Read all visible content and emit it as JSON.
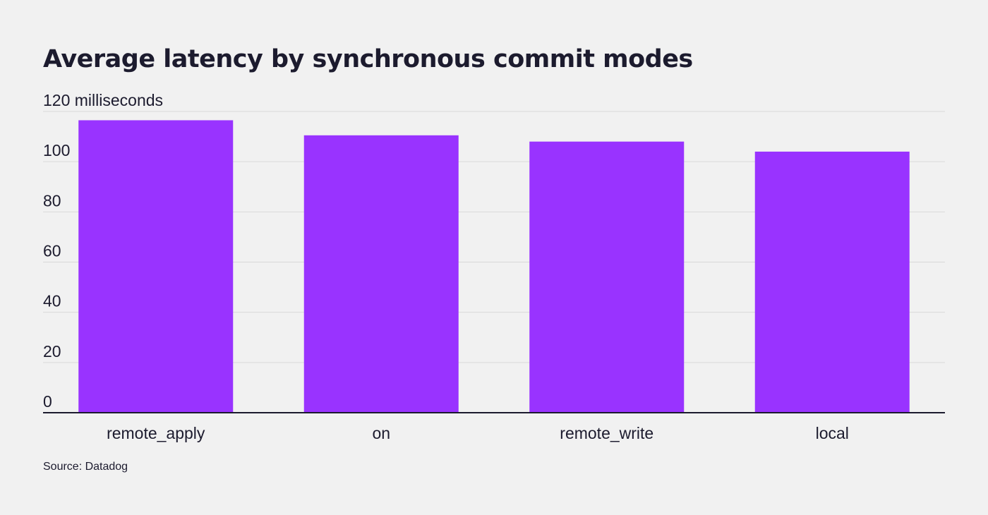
{
  "chart_data": {
    "type": "bar",
    "title": "Average latency by synchronous commit modes",
    "unit_label": "120 milliseconds",
    "categories": [
      "remote_apply",
      "on",
      "remote_write",
      "local"
    ],
    "values": [
      116.5,
      110.5,
      108,
      104
    ],
    "ylim": [
      0,
      120
    ],
    "yticks": [
      0,
      20,
      40,
      60,
      80,
      100,
      120
    ],
    "ytick_labels": [
      "0",
      "20",
      "40",
      "60",
      "80",
      "100",
      "120 milliseconds"
    ],
    "grid": true,
    "bar_color": "#9933ff",
    "source": "Source: Datadog"
  }
}
